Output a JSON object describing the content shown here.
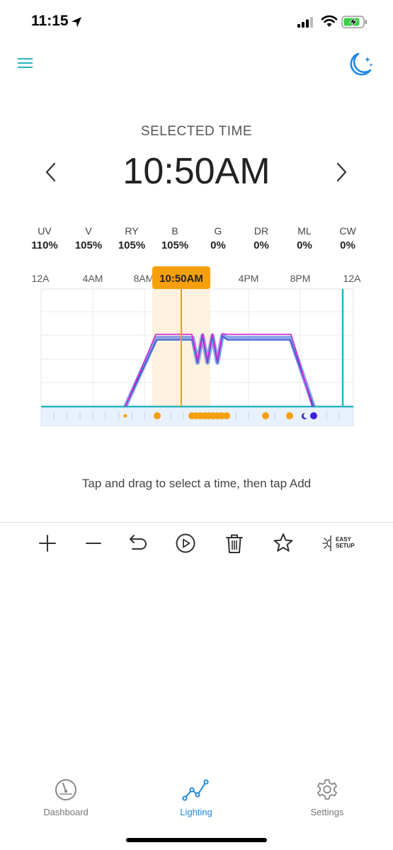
{
  "status_bar": {
    "time": "11:15"
  },
  "header": {
    "selected_label": "SELECTED TIME",
    "time": "10:50AM"
  },
  "channels": [
    {
      "name": "UV",
      "value": "110%"
    },
    {
      "name": "V",
      "value": "105%"
    },
    {
      "name": "RY",
      "value": "105%"
    },
    {
      "name": "B",
      "value": "105%"
    },
    {
      "name": "G",
      "value": "0%"
    },
    {
      "name": "DR",
      "value": "0%"
    },
    {
      "name": "ML",
      "value": "0%"
    },
    {
      "name": "CW",
      "value": "0%"
    }
  ],
  "timeline": {
    "tick_labels": [
      "12A",
      "4AM",
      "8AM",
      "4PM",
      "8PM",
      "12A"
    ],
    "selected_badge": "10:50AM"
  },
  "colors": {
    "accent": "#1e88e5",
    "cursor": "#f39c12",
    "teal": "#26b5c0",
    "magenta": "#d61fd6",
    "blue": "#2e59c9"
  },
  "hint": "Tap and drag to select a time, then tap Add",
  "toolbar": {
    "icons": [
      "plus-icon",
      "minus-icon",
      "undo-icon",
      "play-icon",
      "trash-icon",
      "star-icon",
      "easy-setup-icon"
    ],
    "easy_setup_line1": "EASY",
    "easy_setup_line2": "SETUP"
  },
  "tabs": [
    {
      "label": "Dashboard"
    },
    {
      "label": "Lighting"
    },
    {
      "label": "Settings"
    }
  ]
}
